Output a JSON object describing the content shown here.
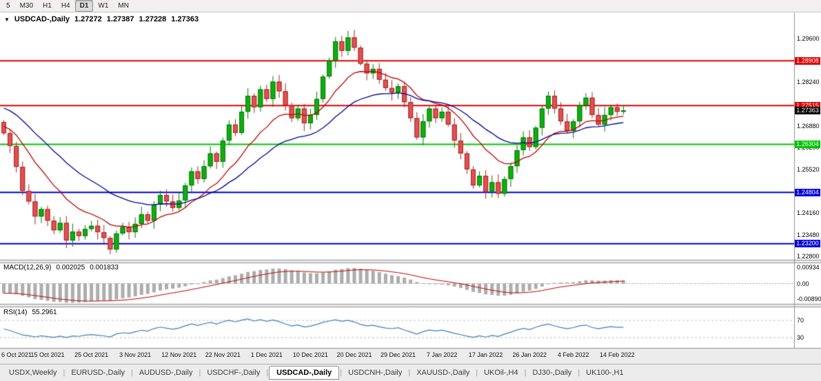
{
  "toolbar": {
    "timeframes": [
      {
        "label": "5",
        "active": false
      },
      {
        "label": "M30",
        "active": false
      },
      {
        "label": "H1",
        "active": false
      },
      {
        "label": "H4",
        "active": false
      },
      {
        "label": "D1",
        "active": true
      },
      {
        "label": "W1",
        "active": false
      },
      {
        "label": "MN",
        "active": false
      }
    ]
  },
  "chart": {
    "title": {
      "symbol": "USDCAD-,Daily",
      "open": "1.27272",
      "high": "1.27387",
      "low": "1.27228",
      "close": "1.27363"
    },
    "scale": {
      "top": 1.304,
      "bottom": 1.227
    },
    "price_axis": {
      "labels": [
        {
          "text": "1.29600",
          "price": 1.296
        },
        {
          "text": "1.28240",
          "price": 1.2824
        },
        {
          "text": "1.26880",
          "price": 1.2688
        },
        {
          "text": "1.26200",
          "price": 1.262
        },
        {
          "text": "1.25520",
          "price": 1.2552
        },
        {
          "text": "1.24160",
          "price": 1.2416
        },
        {
          "text": "1.23480",
          "price": 1.2348
        },
        {
          "text": "1.22800",
          "price": 1.228
        }
      ],
      "badges": [
        {
          "text": "1.28908",
          "price": 1.28908,
          "bg": "#E00000",
          "fg": "#FFFFFF",
          "name": "resistance-badge-1"
        },
        {
          "text": "1.27515",
          "price": 1.27515,
          "bg": "#E00000",
          "fg": "#FFFFFF",
          "name": "resistance-badge-2"
        },
        {
          "text": "1.27363",
          "price": 1.27363,
          "bg": "#000000",
          "fg": "#FFFFFF",
          "name": "current-price-badge"
        },
        {
          "text": "1.26304",
          "price": 1.26304,
          "bg": "#00C400",
          "fg": "#FFFFFF",
          "name": "support-badge-1"
        },
        {
          "text": "1.24804",
          "price": 1.24804,
          "bg": "#0000D6",
          "fg": "#FFFFFF",
          "name": "support-badge-2"
        },
        {
          "text": "1.23200",
          "price": 1.232,
          "bg": "#0000D6",
          "fg": "#FFFFFF",
          "name": "support-badge-3"
        }
      ]
    },
    "dates": [
      {
        "text": "6 Oct 2021",
        "index": 0
      },
      {
        "text": "15 Oct 2021",
        "index": 7
      },
      {
        "text": "25 Oct 2021",
        "index": 14
      },
      {
        "text": "3 Nov 2021",
        "index": 21
      },
      {
        "text": "12 Nov 2021",
        "index": 28
      },
      {
        "text": "22 Nov 2021",
        "index": 35
      },
      {
        "text": "1 Dec 2021",
        "index": 42
      },
      {
        "text": "10 Dec 2021",
        "index": 49
      },
      {
        "text": "20 Dec 2021",
        "index": 56
      },
      {
        "text": "29 Dec 2021",
        "index": 63
      },
      {
        "text": "7 Jan 2022",
        "index": 70
      },
      {
        "text": "17 Jan 2022",
        "index": 77
      },
      {
        "text": "26 Jan 2022",
        "index": 84
      },
      {
        "text": "4 Feb 2022",
        "index": 91
      },
      {
        "text": "14 Feb 2022",
        "index": 98
      }
    ]
  },
  "macd_panel": {
    "label": "MACD(12,26,9)",
    "value_main": "0.002025",
    "value_signal": "0.001833",
    "axis": [
      {
        "text": "0.00934",
        "value": 0.00934
      },
      {
        "text": "0.00",
        "value": 0
      },
      {
        "text": "-0.00890",
        "value": -0.0089
      }
    ]
  },
  "rsi_panel": {
    "label": "RSI(14)",
    "value": "55.2961",
    "levels": [
      {
        "text": "70",
        "value": 70
      },
      {
        "text": "30",
        "value": 30
      }
    ]
  },
  "tabs": {
    "items": [
      {
        "label": "USDX,Weekly",
        "active": false
      },
      {
        "label": "EURUSD-,Daily",
        "active": false
      },
      {
        "label": "AUDUSD-,Daily",
        "active": false
      },
      {
        "label": "USDCHF-,Daily",
        "active": false
      },
      {
        "label": "USDCAD-,Daily",
        "active": true
      },
      {
        "label": "USDCNH-,Daily",
        "active": false
      },
      {
        "label": "XAUUSD-,Daily",
        "active": false
      },
      {
        "label": "UKOil-,H4",
        "active": false
      },
      {
        "label": "DJ30-,Daily",
        "active": false
      },
      {
        "label": "UK100-,H1",
        "active": false
      }
    ]
  },
  "chart_data": {
    "type": "candlestick",
    "symbol": "USDCAD-",
    "timeframe": "Daily",
    "title": "USDCAD-,Daily",
    "quote": {
      "open": 1.27272,
      "high": 1.27387,
      "low": 1.27228,
      "close": 1.27363
    },
    "price_axis_range": {
      "top": 1.304,
      "bottom": 1.227
    },
    "first_open": 1.27,
    "closes": [
      1.2665,
      1.2625,
      1.256,
      1.2485,
      1.2452,
      1.2405,
      1.2428,
      1.2392,
      1.2362,
      1.2385,
      1.233,
      1.2358,
      1.2344,
      1.2366,
      1.2376,
      1.2356,
      1.2338,
      1.2302,
      1.2352,
      1.2372,
      1.2356,
      1.2382,
      1.2412,
      1.2392,
      1.2442,
      1.2472,
      1.2452,
      1.2432,
      1.2455,
      1.2502,
      1.2546,
      1.2522,
      1.2562,
      1.2602,
      1.2576,
      1.2642,
      1.2692,
      1.2666,
      1.2732,
      1.2782,
      1.2746,
      1.2802,
      1.2772,
      1.2826,
      1.2796,
      1.2752,
      1.2712,
      1.2742,
      1.2696,
      1.2722,
      1.2772,
      1.2842,
      1.2892,
      1.2952,
      1.2922,
      1.2964,
      1.2932,
      1.2882,
      1.2852,
      1.2866,
      1.2832,
      1.2806,
      1.2792,
      1.2812,
      1.2762,
      1.2712,
      1.2652,
      1.2702,
      1.2742,
      1.2712,
      1.2732,
      1.2692,
      1.2642,
      1.2602,
      1.2552,
      1.2502,
      1.2532,
      1.2482,
      1.2512,
      1.2476,
      1.2522,
      1.2562,
      1.2612,
      1.2652,
      1.2622,
      1.2682,
      1.2742,
      1.2782,
      1.2742,
      1.2702,
      1.2672,
      1.2702,
      1.2752,
      1.2776,
      1.2722,
      1.2692,
      1.2722,
      1.2746,
      1.2732,
      1.27363
    ],
    "horizontal_lines": [
      {
        "price": 1.28908,
        "color": "#E00000"
      },
      {
        "price": 1.27515,
        "color": "#E00000"
      },
      {
        "price": 1.26304,
        "color": "#00C400"
      },
      {
        "price": 1.24804,
        "color": "#0000D6"
      },
      {
        "price": 1.232,
        "color": "#0000D6"
      }
    ],
    "moving_averages": [
      {
        "type": "ema",
        "period": 12,
        "color": "#C00000"
      },
      {
        "type": "ema",
        "period": 26,
        "color": "#000090"
      }
    ],
    "indicators": {
      "macd": {
        "name": "MACD(12,26,9)",
        "fast": 12,
        "slow": 26,
        "signal": 9,
        "current_main": 0.002025,
        "current_signal": 0.001833,
        "axis_labels": [
          0.00934,
          0.0,
          -0.0089
        ],
        "histogram_color": "#ADADAD",
        "signal_color": "#C00000"
      },
      "rsi": {
        "name": "RSI(14)",
        "period": 14,
        "current": 55.2961,
        "levels": [
          70,
          30
        ],
        "color": "#3C7EBF"
      }
    }
  }
}
